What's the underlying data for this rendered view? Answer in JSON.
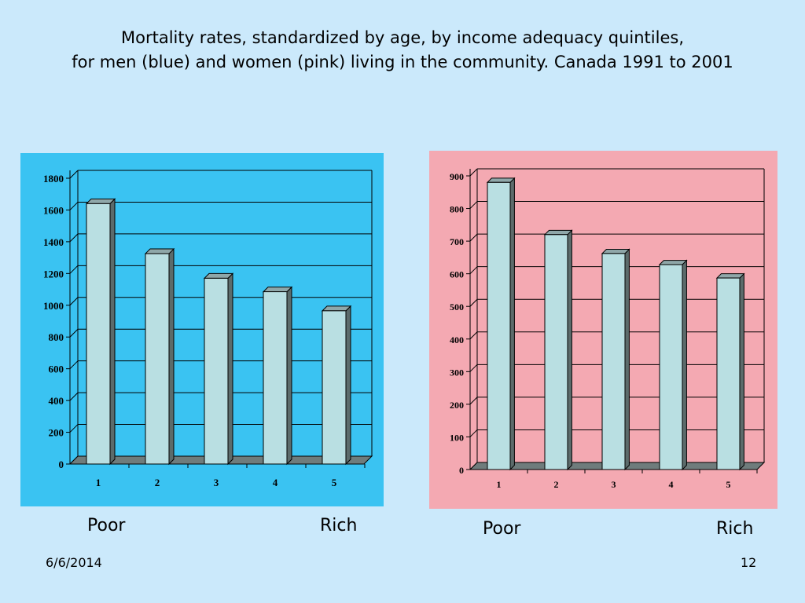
{
  "slide": {
    "title_line1": "Mortality rates, standardized by age, by income adequacy quintiles,",
    "title_line2": "for men (blue) and women (pink) living in the community.  Canada 1991 to 2001",
    "date": "6/6/2014",
    "page_number": "12"
  },
  "axis_labels": {
    "men": {
      "left": "Poor",
      "right": "Rich"
    },
    "women": {
      "left": "Poor",
      "right": "Rich"
    }
  },
  "colors": {
    "men_background": "#3ac3f2",
    "women_background": "#f4a9b2",
    "bar_front": "#b9dfe2",
    "bar_side": "#5c6b6b"
  },
  "chart_data": [
    {
      "type": "bar",
      "name": "men",
      "categories": [
        "1",
        "2",
        "3",
        "4",
        "5"
      ],
      "values": [
        1640,
        1325,
        1170,
        1085,
        965
      ],
      "ylim": [
        0,
        1800
      ],
      "yticks": [
        0,
        200,
        400,
        600,
        800,
        1000,
        1200,
        1400,
        1600,
        1800
      ],
      "grid": true
    },
    {
      "type": "bar",
      "name": "women",
      "categories": [
        "1",
        "2",
        "3",
        "4",
        "5"
      ],
      "values": [
        880,
        720,
        662,
        628,
        587
      ],
      "ylim": [
        0,
        900
      ],
      "yticks": [
        0,
        100,
        200,
        300,
        400,
        500,
        600,
        700,
        800,
        900
      ],
      "grid": true
    }
  ]
}
